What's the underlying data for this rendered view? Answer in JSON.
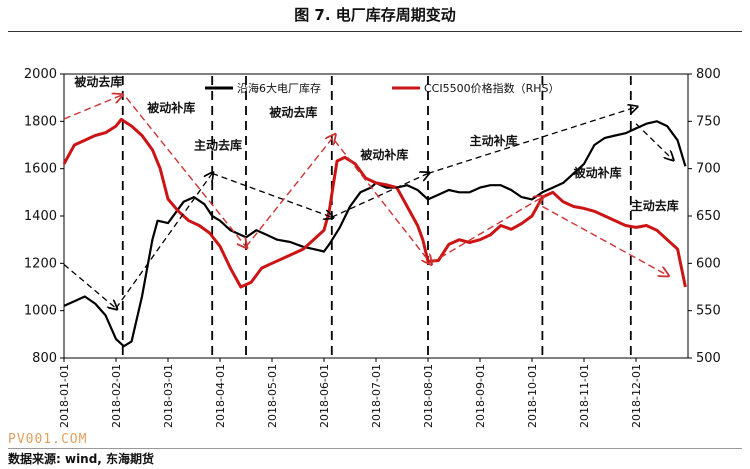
{
  "title": "图 7. 电厂库存周期变动",
  "source_note": "数据来源: wind, 东海期货",
  "watermark": "PV001.COM",
  "chart_data": {
    "type": "line",
    "x_range": [
      0,
      12
    ],
    "y_left": {
      "range": [
        800,
        2000
      ],
      "ticks": [
        800,
        1000,
        1200,
        1400,
        1600,
        1800,
        2000
      ]
    },
    "y_right": {
      "range": [
        500,
        800
      ],
      "ticks": [
        500,
        550,
        600,
        650,
        700,
        750,
        800
      ]
    },
    "x_ticks": [
      {
        "x": 0,
        "label": "2018-01-01"
      },
      {
        "x": 1,
        "label": "2018-02-01"
      },
      {
        "x": 2,
        "label": "2018-03-01"
      },
      {
        "x": 3,
        "label": "2018-04-01"
      },
      {
        "x": 4,
        "label": "2018-05-01"
      },
      {
        "x": 5,
        "label": "2018-06-01"
      },
      {
        "x": 6,
        "label": "2018-07-01"
      },
      {
        "x": 7,
        "label": "2018-08-01"
      },
      {
        "x": 8,
        "label": "2018-09-01"
      },
      {
        "x": 9,
        "label": "2018-10-01"
      },
      {
        "x": 10,
        "label": "2018-11-01"
      },
      {
        "x": 11,
        "label": "2018-12-01"
      }
    ],
    "series": [
      {
        "name": "沿海6大电厂库存",
        "axis": "left",
        "color": "#000000",
        "x": [
          0,
          0.2,
          0.4,
          0.6,
          0.8,
          1.0,
          1.15,
          1.3,
          1.5,
          1.7,
          1.8,
          2.0,
          2.3,
          2.5,
          2.7,
          2.85,
          3.0,
          3.2,
          3.5,
          3.7,
          3.9,
          4.1,
          4.35,
          4.6,
          4.8,
          5.0,
          5.1,
          5.3,
          5.5,
          5.7,
          5.9,
          6.0,
          6.2,
          6.4,
          6.6,
          6.8,
          7.0,
          7.2,
          7.4,
          7.6,
          7.8,
          8.0,
          8.2,
          8.4,
          8.6,
          8.8,
          9.0,
          9.2,
          9.4,
          9.6,
          9.8,
          10.0,
          10.2,
          10.4,
          10.6,
          10.8,
          11.0,
          11.2,
          11.4,
          11.6,
          11.8,
          11.95
        ],
        "values": [
          1020,
          1040,
          1060,
          1030,
          980,
          880,
          850,
          870,
          1060,
          1300,
          1380,
          1370,
          1460,
          1480,
          1450,
          1400,
          1380,
          1340,
          1310,
          1340,
          1320,
          1300,
          1290,
          1270,
          1260,
          1250,
          1280,
          1350,
          1440,
          1500,
          1520,
          1540,
          1520,
          1520,
          1530,
          1510,
          1470,
          1490,
          1510,
          1500,
          1500,
          1520,
          1530,
          1530,
          1510,
          1480,
          1470,
          1500,
          1520,
          1540,
          1580,
          1620,
          1700,
          1730,
          1740,
          1750,
          1770,
          1790,
          1800,
          1780,
          1720,
          1610
        ]
      },
      {
        "name": "CCI5500价格指数（RHS）",
        "axis": "right",
        "color": "#cc1414",
        "x": [
          0,
          0.2,
          0.4,
          0.6,
          0.8,
          1.0,
          1.1,
          1.3,
          1.5,
          1.7,
          1.85,
          2.0,
          2.2,
          2.4,
          2.6,
          2.8,
          3.0,
          3.2,
          3.4,
          3.6,
          3.8,
          4.0,
          4.2,
          4.4,
          4.6,
          4.8,
          5.0,
          5.1,
          5.25,
          5.4,
          5.6,
          5.8,
          6.0,
          6.2,
          6.4,
          6.6,
          6.8,
          6.9,
          7.0,
          7.2,
          7.4,
          7.6,
          7.8,
          8.0,
          8.2,
          8.4,
          8.6,
          8.8,
          9.0,
          9.2,
          9.4,
          9.6,
          9.8,
          10.0,
          10.2,
          10.4,
          10.6,
          10.8,
          11.0,
          11.2,
          11.4,
          11.6,
          11.8,
          11.95
        ],
        "values": [
          705,
          725,
          730,
          735,
          738,
          745,
          752,
          745,
          735,
          720,
          700,
          668,
          655,
          645,
          640,
          632,
          618,
          595,
          575,
          580,
          595,
          600,
          605,
          610,
          615,
          625,
          635,
          655,
          708,
          712,
          705,
          690,
          685,
          683,
          680,
          660,
          640,
          625,
          602,
          603,
          620,
          625,
          622,
          625,
          630,
          640,
          636,
          642,
          650,
          670,
          675,
          665,
          660,
          658,
          655,
          650,
          645,
          640,
          638,
          640,
          635,
          625,
          615,
          575
        ]
      }
    ],
    "annotations": [
      {
        "text": "被动去库",
        "x": 0.2,
        "y": 1950
      },
      {
        "text": "被动补库",
        "x": 1.6,
        "y": 1840
      },
      {
        "text": "主动去库",
        "x": 2.5,
        "y": 1680
      },
      {
        "text": "被动去库",
        "x": 3.95,
        "y": 1820
      },
      {
        "text": "被动补库",
        "x": 5.7,
        "y": 1640
      },
      {
        "text": "主动补库",
        "x": 7.8,
        "y": 1700
      },
      {
        "text": "被动补库",
        "x": 9.8,
        "y": 1565
      },
      {
        "text": "主动去库",
        "x": 10.9,
        "y": 1425
      }
    ],
    "dashed_lines_x": [
      1.13,
      2.85,
      3.5,
      5.15,
      7.0,
      9.2,
      10.9
    ]
  }
}
